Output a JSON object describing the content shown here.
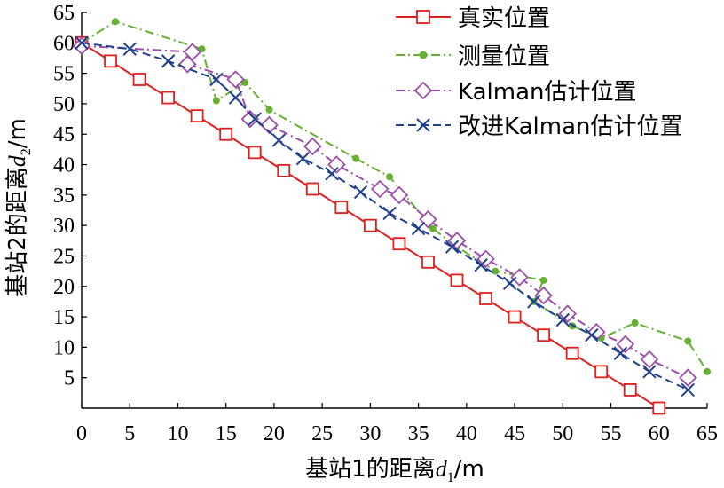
{
  "chart_data": {
    "type": "line",
    "xlabel": "基站1的距离d1/m",
    "ylabel": "基站2的距离d2/m",
    "x_label_parts": {
      "prefix": "基站1的距离",
      "var": "d",
      "sub": "1",
      "unit": "/m"
    },
    "y_label_parts": {
      "prefix": "基站2的距离",
      "var": "d",
      "sub": "2",
      "unit": "/m"
    },
    "xlim": [
      0,
      65
    ],
    "ylim": [
      0,
      65
    ],
    "xticks": [
      0,
      5,
      10,
      15,
      20,
      25,
      30,
      35,
      40,
      45,
      50,
      55,
      60,
      65
    ],
    "yticks": [
      5,
      10,
      15,
      20,
      25,
      30,
      35,
      40,
      45,
      50,
      55,
      60,
      65
    ],
    "legend_position": "top-right",
    "grid": false,
    "series": [
      {
        "name": "真实位置",
        "color": "#e0201e",
        "linestyle": "solid",
        "marker": "square",
        "points": [
          [
            0,
            60
          ],
          [
            3,
            57
          ],
          [
            6,
            54
          ],
          [
            9,
            51
          ],
          [
            12,
            48
          ],
          [
            15,
            45
          ],
          [
            18,
            42
          ],
          [
            21,
            39
          ],
          [
            24,
            36
          ],
          [
            27,
            33
          ],
          [
            30,
            30
          ],
          [
            33,
            27
          ],
          [
            36,
            24
          ],
          [
            39,
            21
          ],
          [
            42,
            18
          ],
          [
            45,
            15
          ],
          [
            48,
            12
          ],
          [
            51,
            9
          ],
          [
            54,
            6
          ],
          [
            57,
            3
          ],
          [
            60,
            0
          ]
        ]
      },
      {
        "name": "测量位置",
        "color": "#66b032",
        "linestyle": "dashdot",
        "marker": "dot",
        "points": [
          [
            0,
            60
          ],
          [
            3.5,
            63.5
          ],
          [
            12.5,
            59
          ],
          [
            14,
            50.5
          ],
          [
            17,
            53.5
          ],
          [
            19.5,
            49
          ],
          [
            28.5,
            41
          ],
          [
            32,
            38
          ],
          [
            36.5,
            29.5
          ],
          [
            39,
            26.5
          ],
          [
            43,
            22.5
          ],
          [
            48,
            21
          ],
          [
            47,
            17.5
          ],
          [
            51,
            13.5
          ],
          [
            54,
            11.5
          ],
          [
            57.5,
            14
          ],
          [
            63,
            11
          ],
          [
            65,
            6
          ]
        ]
      },
      {
        "name": "Kalman估计位置",
        "color": "#9b4fa8",
        "linestyle": "dashdot",
        "marker": "diamond",
        "points": [
          [
            0,
            59.5
          ],
          [
            11.5,
            58.5
          ],
          [
            11,
            56.5
          ],
          [
            16,
            54
          ],
          [
            17.5,
            47.5
          ],
          [
            19.5,
            46.5
          ],
          [
            24,
            43
          ],
          [
            26.5,
            40
          ],
          [
            31,
            36
          ],
          [
            33,
            35
          ],
          [
            36,
            31
          ],
          [
            39,
            27.5
          ],
          [
            42,
            24.5
          ],
          [
            45.5,
            21.5
          ],
          [
            48,
            18.5
          ],
          [
            50.5,
            15.5
          ],
          [
            53.5,
            12.5
          ],
          [
            56.5,
            10.5
          ],
          [
            59,
            8
          ],
          [
            63,
            5
          ]
        ]
      },
      {
        "name": "改进Kalman估计位置",
        "color": "#1f3f8c",
        "linestyle": "dashed",
        "marker": "x",
        "points": [
          [
            0,
            60
          ],
          [
            5,
            59
          ],
          [
            9,
            57
          ],
          [
            14,
            54
          ],
          [
            16,
            51
          ],
          [
            18,
            47.5
          ],
          [
            20.5,
            44
          ],
          [
            23,
            41
          ],
          [
            26,
            38.5
          ],
          [
            29,
            35.5
          ],
          [
            32,
            32
          ],
          [
            35,
            29.5
          ],
          [
            38.5,
            26.5
          ],
          [
            41.5,
            23.5
          ],
          [
            44.5,
            20.5
          ],
          [
            47,
            17.5
          ],
          [
            50,
            14.5
          ],
          [
            53,
            12
          ],
          [
            56,
            9
          ],
          [
            59,
            6
          ],
          [
            63,
            3
          ]
        ]
      }
    ]
  }
}
